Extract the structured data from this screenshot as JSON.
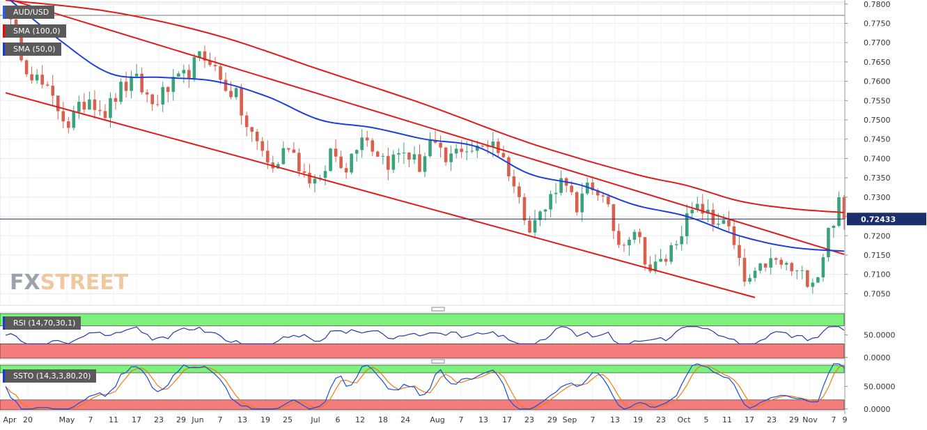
{
  "header": {
    "symbol": "AUD/USD",
    "sma100_label": "SMA (100,0)",
    "sma50_label": "SMA (50,0)",
    "rsi_label": "RSI (14,70,30,1)",
    "ssto_label": "SSTO (14,3,3,80,20)",
    "brand_fx": "FX",
    "brand_street": "STREET",
    "last_price": "0.72433"
  },
  "colors": {
    "up": "#3aa37a",
    "down": "#d9604d",
    "sma100": "#e31a1a",
    "sma50": "#1b3fe0",
    "channel": "#e31a1a",
    "rsi_line": "#2436b0",
    "ssto_k": "#1a49e0",
    "ssto_d": "#f07a10",
    "overbought": "#7cf27c",
    "oversold": "#f57c7c"
  },
  "chart_data": [
    {
      "type": "candlestick",
      "name": "price",
      "y_ticks": [
        "0.7800",
        "0.7750",
        "0.7700",
        "0.7650",
        "0.7600",
        "0.7550",
        "0.7500",
        "0.7450",
        "0.7400",
        "0.7350",
        "0.7300",
        "0.7250",
        "0.7200",
        "0.7150",
        "0.7100",
        "0.7050"
      ],
      "ylim": [
        0.702,
        0.7805
      ],
      "x_labels": [
        "Apr",
        "20",
        "May",
        "7",
        "11",
        "17",
        "23",
        "29",
        "Jun",
        "7",
        "13",
        "19",
        "25",
        "Jul",
        "6",
        "12",
        "18",
        "24",
        "Aug",
        "7",
        "13",
        "17",
        "23",
        "29",
        "Sep",
        "7",
        "13",
        "19",
        "23",
        "Oct",
        "5",
        "11",
        "17",
        "23",
        "29",
        "Nov",
        "7",
        "9"
      ],
      "last_price": 0.72433,
      "trading_days": 160,
      "anchors": [
        [
          0,
          0.778
        ],
        [
          4,
          0.764
        ],
        [
          8,
          0.757
        ],
        [
          12,
          0.749
        ],
        [
          16,
          0.756
        ],
        [
          19,
          0.752
        ],
        [
          22,
          0.758
        ],
        [
          25,
          0.76
        ],
        [
          28,
          0.754
        ],
        [
          31,
          0.758
        ],
        [
          34,
          0.761
        ],
        [
          37,
          0.766
        ],
        [
          39,
          0.766
        ],
        [
          41,
          0.76
        ],
        [
          44,
          0.756
        ],
        [
          46,
          0.748
        ],
        [
          49,
          0.742
        ],
        [
          51,
          0.737
        ],
        [
          54,
          0.744
        ],
        [
          57,
          0.736
        ],
        [
          60,
          0.733
        ],
        [
          62,
          0.742
        ],
        [
          65,
          0.738
        ],
        [
          68,
          0.747
        ],
        [
          70,
          0.743
        ],
        [
          73,
          0.739
        ],
        [
          76,
          0.742
        ],
        [
          79,
          0.738
        ],
        [
          81,
          0.744
        ],
        [
          84,
          0.739
        ],
        [
          87,
          0.743
        ],
        [
          90,
          0.742
        ],
        [
          93,
          0.745
        ],
        [
          96,
          0.737
        ],
        [
          98,
          0.729
        ],
        [
          100,
          0.723
        ],
        [
          103,
          0.727
        ],
        [
          105,
          0.733
        ],
        [
          107,
          0.735
        ],
        [
          109,
          0.725
        ],
        [
          111,
          0.733
        ],
        [
          113,
          0.732
        ],
        [
          115,
          0.726
        ],
        [
          117,
          0.718
        ],
        [
          120,
          0.722
        ],
        [
          123,
          0.711
        ],
        [
          126,
          0.714
        ],
        [
          129,
          0.722
        ],
        [
          131,
          0.726
        ],
        [
          133,
          0.727
        ],
        [
          135,
          0.723
        ],
        [
          137,
          0.725
        ],
        [
          139,
          0.717
        ],
        [
          141,
          0.708
        ],
        [
          143,
          0.709
        ],
        [
          145,
          0.713
        ],
        [
          147,
          0.713
        ],
        [
          149,
          0.712
        ],
        [
          151,
          0.71
        ],
        [
          153,
          0.709
        ],
        [
          155,
          0.71
        ],
        [
          157,
          0.721
        ],
        [
          159,
          0.728
        ],
        [
          160,
          0.7243
        ]
      ],
      "sma100": [
        [
          0,
          0.781
        ],
        [
          20,
          0.778
        ],
        [
          40,
          0.772
        ],
        [
          60,
          0.763
        ],
        [
          80,
          0.754
        ],
        [
          100,
          0.744
        ],
        [
          120,
          0.736
        ],
        [
          130,
          0.733
        ],
        [
          140,
          0.729
        ],
        [
          150,
          0.727
        ],
        [
          160,
          0.726
        ]
      ],
      "sma50": [
        [
          0,
          0.782
        ],
        [
          10,
          0.771
        ],
        [
          20,
          0.762
        ],
        [
          30,
          0.761
        ],
        [
          40,
          0.76
        ],
        [
          50,
          0.756
        ],
        [
          60,
          0.75
        ],
        [
          70,
          0.748
        ],
        [
          80,
          0.745
        ],
        [
          90,
          0.743
        ],
        [
          100,
          0.736
        ],
        [
          110,
          0.733
        ],
        [
          120,
          0.728
        ],
        [
          130,
          0.725
        ],
        [
          140,
          0.72
        ],
        [
          150,
          0.717
        ],
        [
          160,
          0.716
        ]
      ],
      "channel_upper": [
        [
          0,
          0.7815
        ],
        [
          160,
          0.7152
        ]
      ],
      "channel_lower": [
        [
          0,
          0.757
        ],
        [
          143,
          0.704
        ]
      ]
    },
    {
      "type": "line",
      "name": "RSI",
      "y_ticks": [
        "50.0000",
        "0.0000"
      ],
      "ylim": [
        -5,
        100
      ],
      "overbought": 70,
      "oversold": 30
    },
    {
      "type": "line",
      "name": "SSTO",
      "y_ticks": [
        "50.0000",
        "0.0000"
      ],
      "ylim": [
        -5,
        100
      ],
      "overbought": 80,
      "oversold": 20
    }
  ]
}
